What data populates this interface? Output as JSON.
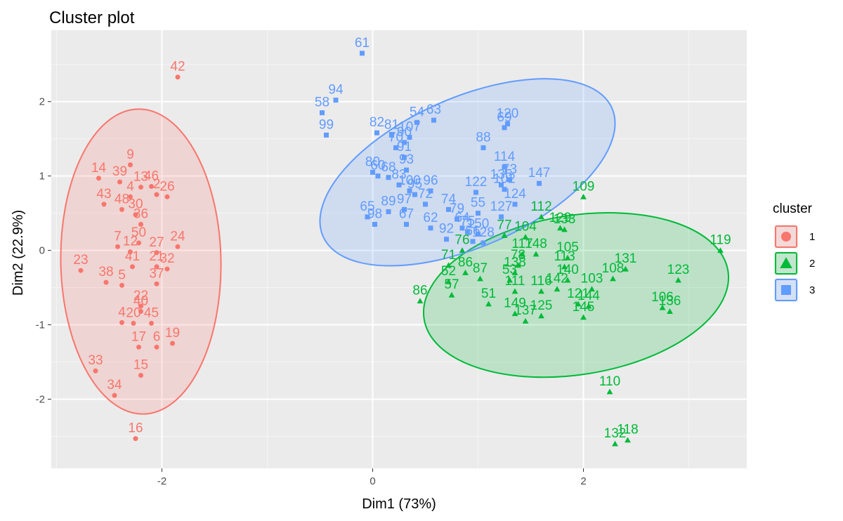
{
  "chart_data": {
    "type": "scatter",
    "title": "Cluster plot",
    "xlabel": "Dim1 (73%)",
    "ylabel": "Dim2 (22.9%)",
    "xlim": [
      -3.05,
      3.55
    ],
    "ylim": [
      -2.93,
      2.96
    ],
    "x_ticks": [
      -2,
      0,
      2
    ],
    "y_ticks": [
      -2,
      -1,
      0,
      1,
      2
    ],
    "x_tick_labels": [
      "-2",
      "0",
      "2"
    ],
    "y_tick_labels": [
      "-2",
      "-1",
      "0",
      "1",
      "2"
    ],
    "grid": true,
    "legend_position": "right",
    "legend_title": "cluster",
    "series": [
      {
        "name": "1",
        "color": "#F8766D",
        "shape": "circle",
        "ellipse": {
          "cx": -2.2,
          "cy": -0.15,
          "rx": 0.76,
          "ry": 2.05,
          "angle_deg": -1
        },
        "points": [
          {
            "label": "42",
            "x": -1.85,
            "y": 2.33
          },
          {
            "label": "9",
            "x": -2.3,
            "y": 1.15
          },
          {
            "label": "14",
            "x": -2.6,
            "y": 0.97
          },
          {
            "label": "39",
            "x": -2.4,
            "y": 0.92
          },
          {
            "label": "13",
            "x": -2.2,
            "y": 0.85
          },
          {
            "label": "46",
            "x": -2.1,
            "y": 0.86
          },
          {
            "label": "26",
            "x": -1.95,
            "y": 0.72
          },
          {
            "label": "2",
            "x": -2.05,
            "y": 0.75
          },
          {
            "label": "4",
            "x": -2.3,
            "y": 0.72
          },
          {
            "label": "43",
            "x": -2.55,
            "y": 0.62
          },
          {
            "label": "48",
            "x": -2.38,
            "y": 0.55
          },
          {
            "label": "30",
            "x": -2.25,
            "y": 0.48
          },
          {
            "label": "36",
            "x": -2.2,
            "y": 0.35
          },
          {
            "label": "50",
            "x": -2.22,
            "y": 0.1
          },
          {
            "label": "7",
            "x": -2.42,
            "y": 0.05
          },
          {
            "label": "12",
            "x": -2.3,
            "y": -0.02
          },
          {
            "label": "24",
            "x": -1.85,
            "y": 0.05
          },
          {
            "label": "27",
            "x": -2.05,
            "y": -0.03
          },
          {
            "label": "41",
            "x": -2.28,
            "y": -0.22
          },
          {
            "label": "32",
            "x": -1.95,
            "y": -0.25
          },
          {
            "label": "21",
            "x": -2.05,
            "y": -0.22
          },
          {
            "label": "23",
            "x": -2.77,
            "y": -0.27
          },
          {
            "label": "38",
            "x": -2.53,
            "y": -0.43
          },
          {
            "label": "5",
            "x": -2.38,
            "y": -0.47
          },
          {
            "label": "37",
            "x": -2.05,
            "y": -0.45
          },
          {
            "label": "22",
            "x": -2.2,
            "y": -0.75
          },
          {
            "label": "40",
            "x": -2.2,
            "y": -0.82
          },
          {
            "label": "4",
            "x": -2.38,
            "y": -0.97
          },
          {
            "label": "20",
            "x": -2.27,
            "y": -0.98
          },
          {
            "label": "45",
            "x": -2.1,
            "y": -0.98
          },
          {
            "label": "17",
            "x": -2.22,
            "y": -1.3
          },
          {
            "label": "6",
            "x": -2.05,
            "y": -1.3
          },
          {
            "label": "19",
            "x": -1.9,
            "y": -1.25
          },
          {
            "label": "33",
            "x": -2.63,
            "y": -1.62
          },
          {
            "label": "15",
            "x": -2.2,
            "y": -1.68
          },
          {
            "label": "34",
            "x": -2.45,
            "y": -1.95
          },
          {
            "label": "16",
            "x": -2.25,
            "y": -2.53
          }
        ]
      },
      {
        "name": "2",
        "color": "#00BA38",
        "shape": "triangle",
        "ellipse": {
          "cx": 1.93,
          "cy": -0.6,
          "rx": 1.46,
          "ry": 1.07,
          "angle_deg": -9
        },
        "points": [
          {
            "label": "109",
            "x": 2.0,
            "y": 0.72
          },
          {
            "label": "119",
            "x": 3.3,
            "y": 0.0
          },
          {
            "label": "123",
            "x": 2.9,
            "y": -0.4
          },
          {
            "label": "131",
            "x": 2.4,
            "y": -0.25
          },
          {
            "label": "108",
            "x": 2.28,
            "y": -0.38
          },
          {
            "label": "103",
            "x": 2.08,
            "y": -0.52
          },
          {
            "label": "106",
            "x": 2.75,
            "y": -0.77
          },
          {
            "label": "136",
            "x": 2.82,
            "y": -0.82
          },
          {
            "label": "112",
            "x": 1.6,
            "y": 0.45
          },
          {
            "label": "129",
            "x": 1.78,
            "y": 0.3
          },
          {
            "label": "133",
            "x": 1.82,
            "y": 0.28
          },
          {
            "label": "104",
            "x": 1.45,
            "y": 0.18
          },
          {
            "label": "77",
            "x": 1.25,
            "y": 0.2
          },
          {
            "label": "117",
            "x": 1.42,
            "y": -0.05
          },
          {
            "label": "148",
            "x": 1.55,
            "y": -0.05
          },
          {
            "label": "105",
            "x": 1.85,
            "y": -0.1
          },
          {
            "label": "113",
            "x": 1.82,
            "y": -0.22
          },
          {
            "label": "138",
            "x": 1.35,
            "y": -0.3
          },
          {
            "label": "78",
            "x": 1.38,
            "y": -0.2
          },
          {
            "label": "140",
            "x": 1.85,
            "y": -0.4
          },
          {
            "label": "142",
            "x": 1.75,
            "y": -0.52
          },
          {
            "label": "116",
            "x": 1.6,
            "y": -0.55
          },
          {
            "label": "111",
            "x": 1.35,
            "y": -0.55
          },
          {
            "label": "53",
            "x": 1.3,
            "y": -0.4
          },
          {
            "label": "71",
            "x": 0.72,
            "y": -0.2
          },
          {
            "label": "86",
            "x": 0.88,
            "y": -0.3
          },
          {
            "label": "87",
            "x": 1.02,
            "y": -0.38
          },
          {
            "label": "76",
            "x": 0.85,
            "y": 0.0
          },
          {
            "label": "52",
            "x": 0.72,
            "y": -0.42
          },
          {
            "label": "57",
            "x": 0.75,
            "y": -0.6
          },
          {
            "label": "51",
            "x": 1.1,
            "y": -0.72
          },
          {
            "label": "86",
            "x": 0.45,
            "y": -0.68
          },
          {
            "label": "144",
            "x": 2.05,
            "y": -0.75
          },
          {
            "label": "121",
            "x": 1.95,
            "y": -0.72
          },
          {
            "label": "125",
            "x": 1.6,
            "y": -0.88
          },
          {
            "label": "137",
            "x": 1.45,
            "y": -0.95
          },
          {
            "label": "149",
            "x": 1.35,
            "y": -0.85
          },
          {
            "label": "145",
            "x": 2.0,
            "y": -0.9
          },
          {
            "label": "110",
            "x": 2.25,
            "y": -1.9
          },
          {
            "label": "132",
            "x": 2.3,
            "y": -2.6
          },
          {
            "label": "118",
            "x": 2.42,
            "y": -2.55
          }
        ]
      },
      {
        "name": "3",
        "color": "#619CFF",
        "shape": "square",
        "ellipse": {
          "cx": 0.9,
          "cy": 1.05,
          "rx": 1.5,
          "ry": 1.0,
          "angle_deg": -24
        },
        "points": [
          {
            "label": "61",
            "x": -0.1,
            "y": 2.65
          },
          {
            "label": "94",
            "x": -0.35,
            "y": 2.02
          },
          {
            "label": "58",
            "x": -0.48,
            "y": 1.85
          },
          {
            "label": "99",
            "x": -0.44,
            "y": 1.55
          },
          {
            "label": "54",
            "x": 0.42,
            "y": 1.72
          },
          {
            "label": "63",
            "x": 0.58,
            "y": 1.75
          },
          {
            "label": "82",
            "x": 0.04,
            "y": 1.58
          },
          {
            "label": "81",
            "x": 0.18,
            "y": 1.55
          },
          {
            "label": "107",
            "x": 0.35,
            "y": 1.52
          },
          {
            "label": "120",
            "x": 1.28,
            "y": 1.7
          },
          {
            "label": "69",
            "x": 1.25,
            "y": 1.65
          },
          {
            "label": "88",
            "x": 1.05,
            "y": 1.38
          },
          {
            "label": "70",
            "x": 0.22,
            "y": 1.38
          },
          {
            "label": "90",
            "x": 0.3,
            "y": 1.45
          },
          {
            "label": "91",
            "x": 0.3,
            "y": 1.25
          },
          {
            "label": "114",
            "x": 1.25,
            "y": 1.12
          },
          {
            "label": "80",
            "x": 0.0,
            "y": 1.05
          },
          {
            "label": "60",
            "x": 0.05,
            "y": 1.0
          },
          {
            "label": "93",
            "x": 0.32,
            "y": 1.08
          },
          {
            "label": "68",
            "x": 0.15,
            "y": 0.98
          },
          {
            "label": "83",
            "x": 0.25,
            "y": 0.88
          },
          {
            "label": "73",
            "x": 1.3,
            "y": 0.95
          },
          {
            "label": "147",
            "x": 1.58,
            "y": 0.9
          },
          {
            "label": "135",
            "x": 1.22,
            "y": 0.88
          },
          {
            "label": "102",
            "x": 1.25,
            "y": 0.82
          },
          {
            "label": "122",
            "x": 0.98,
            "y": 0.78
          },
          {
            "label": "100",
            "x": 0.35,
            "y": 0.8
          },
          {
            "label": "96",
            "x": 0.55,
            "y": 0.8
          },
          {
            "label": "95",
            "x": 0.4,
            "y": 0.75
          },
          {
            "label": "65",
            "x": -0.05,
            "y": 0.45
          },
          {
            "label": "97",
            "x": 0.3,
            "y": 0.55
          },
          {
            "label": "89",
            "x": 0.15,
            "y": 0.52
          },
          {
            "label": "72",
            "x": 0.5,
            "y": 0.62
          },
          {
            "label": "74",
            "x": 0.72,
            "y": 0.55
          },
          {
            "label": "124",
            "x": 1.35,
            "y": 0.62
          },
          {
            "label": "127",
            "x": 1.22,
            "y": 0.45
          },
          {
            "label": "55",
            "x": 1.0,
            "y": 0.5
          },
          {
            "label": "79",
            "x": 0.8,
            "y": 0.42
          },
          {
            "label": "98",
            "x": 0.02,
            "y": 0.35
          },
          {
            "label": "67",
            "x": 0.32,
            "y": 0.35
          },
          {
            "label": "62",
            "x": 0.55,
            "y": 0.3
          },
          {
            "label": "92",
            "x": 0.7,
            "y": 0.15
          },
          {
            "label": "64",
            "x": 0.85,
            "y": 0.3
          },
          {
            "label": "75",
            "x": 0.9,
            "y": 0.25
          },
          {
            "label": "150",
            "x": 1.0,
            "y": 0.22
          },
          {
            "label": "128",
            "x": 1.05,
            "y": 0.1
          },
          {
            "label": "56",
            "x": 0.95,
            "y": 0.12
          }
        ]
      }
    ]
  }
}
